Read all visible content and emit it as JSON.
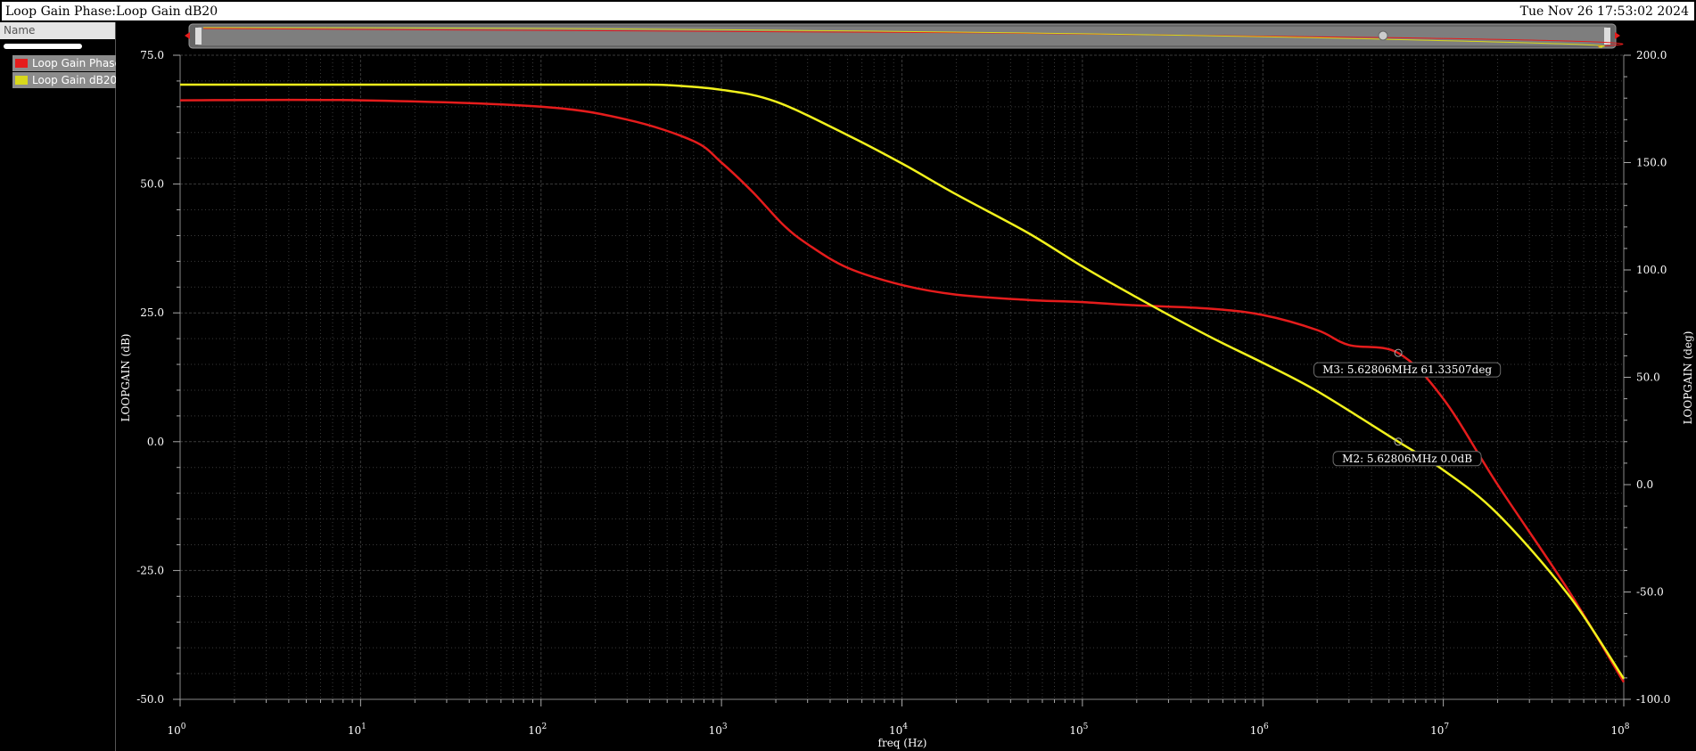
{
  "window": {
    "title": "Loop Gain Phase:Loop Gain dB20",
    "datetime": "Tue Nov 26 17:53:02 2024"
  },
  "legend": {
    "header": "Name",
    "items": [
      {
        "label": "Loop Gain Phase",
        "color": "#e51c1c"
      },
      {
        "label": "Loop Gain dB20",
        "color": "#d8d81c"
      }
    ]
  },
  "colors": {
    "background": "#000000",
    "phase": "#e51c1c",
    "gain": "#f2f21c",
    "grid": "#3a3a3a",
    "marker_box": "#6a6a6a"
  },
  "chart_data": {
    "type": "line",
    "x_scale": "log",
    "xlabel": "freq (Hz)",
    "ylabel_left": "LOOPGAIN (dB)",
    "ylabel_right": "LOOPGAIN (deg)",
    "xlim": [
      1,
      100000000
    ],
    "ylim_left": [
      -50,
      75
    ],
    "ylim_right": [
      -100,
      200
    ],
    "x_ticks": [
      1,
      10,
      100,
      1000,
      10000,
      100000,
      1000000,
      10000000,
      100000000
    ],
    "x_tick_labels": [
      {
        "base": "10",
        "exp": "0"
      },
      {
        "base": "10",
        "exp": "1"
      },
      {
        "base": "10",
        "exp": "2"
      },
      {
        "base": "10",
        "exp": "3"
      },
      {
        "base": "10",
        "exp": "4"
      },
      {
        "base": "10",
        "exp": "5"
      },
      {
        "base": "10",
        "exp": "6"
      },
      {
        "base": "10",
        "exp": "7"
      },
      {
        "base": "10",
        "exp": "8"
      }
    ],
    "y_ticks_left": [
      "75.0",
      "50.0",
      "25.0",
      "0.0",
      "-25.0",
      "-50.0"
    ],
    "y_ticks_right": [
      "200.0",
      "150.0",
      "100.0",
      "50.0",
      "0.0",
      "-50.0",
      "-100.0"
    ],
    "grid": true,
    "series": [
      {
        "name": "Loop Gain Phase",
        "axis": "right",
        "color": "#e51c1c",
        "x": [
          1,
          10,
          100,
          300,
          700,
          1000,
          1500,
          2200,
          3000,
          5000,
          10000,
          20000,
          50000,
          100000,
          200000,
          500000,
          1000000,
          2000000,
          3000000,
          5628060,
          10000000,
          20000000,
          50000000,
          100000000
        ],
        "y": [
          179,
          179,
          176,
          170,
          160,
          150,
          136,
          121,
          112,
          101,
          93,
          88.5,
          86,
          85,
          83.5,
          82,
          79,
          72,
          65,
          61.3,
          40,
          0,
          -50,
          -92
        ]
      },
      {
        "name": "Loop Gain dB20",
        "axis": "left",
        "color": "#f2f21c",
        "x": [
          1,
          10,
          100,
          300,
          500,
          1000,
          2000,
          5000,
          10000,
          20000,
          50000,
          100000,
          200000,
          500000,
          1000000,
          2000000,
          5628060,
          10000000,
          20000000,
          50000000,
          100000000
        ],
        "y": [
          69.3,
          69.3,
          69.3,
          69.3,
          69.2,
          68.3,
          66,
          59.5,
          54,
          48,
          40.5,
          34,
          28,
          20.5,
          15.3,
          9.8,
          0,
          -5.5,
          -14,
          -30,
          -46
        ]
      }
    ],
    "markers": [
      {
        "label": "M3: 5.62806MHz 61.33507deg",
        "series": "Loop Gain Phase",
        "x": 5628060,
        "y": 61.33507
      },
      {
        "label": "M2: 5.62806MHz 0.0dB",
        "series": "Loop Gain dB20",
        "x": 5628060,
        "y": 0.0
      }
    ]
  }
}
